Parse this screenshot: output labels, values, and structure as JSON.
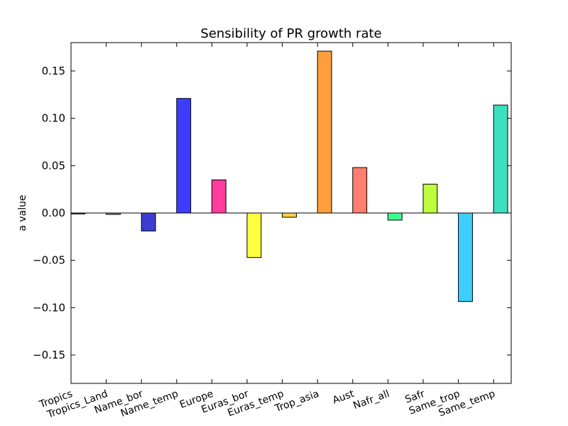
{
  "chart_data": {
    "type": "bar",
    "title": "Sensibility of PR growth rate",
    "xlabel": "",
    "ylabel": "a value",
    "ylim": [
      -0.18,
      0.18
    ],
    "yticks": [
      -0.15,
      -0.1,
      -0.05,
      0.0,
      0.05,
      0.1,
      0.15
    ],
    "ytick_labels": [
      "−0.15",
      "−0.10",
      "−0.05",
      "0.00",
      "0.05",
      "0.10",
      "0.15"
    ],
    "grid": false,
    "categories": [
      "Tropics",
      "Tropics_Land",
      "Name_bor",
      "Name_temp",
      "Europe",
      "Euras_bor",
      "Euras_temp",
      "Trop_asia",
      "Aust",
      "Nafr_all",
      "Safr",
      "Same_trop",
      "Same_temp"
    ],
    "values": [
      -0.001,
      -0.0015,
      -0.019,
      0.121,
      0.035,
      -0.047,
      -0.0045,
      0.171,
      0.048,
      -0.0075,
      0.0305,
      -0.0935,
      0.114
    ],
    "colors": [
      "#3333ff",
      "#33cc33",
      "#3333cc",
      "#3333ff",
      "#ff3399",
      "#ffff33",
      "#ffcc33",
      "#ff9933",
      "#ff7766",
      "#33ff88",
      "#bbff33",
      "#33ccff",
      "#33ddbb"
    ]
  }
}
